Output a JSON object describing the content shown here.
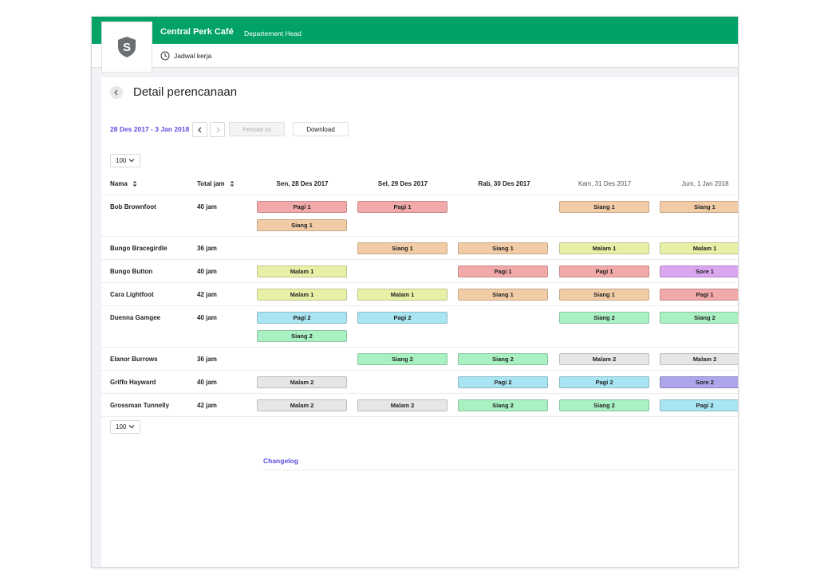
{
  "app": {
    "title": "Central Perk Café",
    "role": "Departement Head",
    "subnav_label": "Jadwal kerja",
    "logo_letter": "S",
    "brand_color": "#00a265"
  },
  "page": {
    "title": "Detail perencanaan",
    "date_range": "28 Des 2017 - 3 Jan 2018",
    "period_button": "Periode ini",
    "download_button": "Download",
    "page_size": "100",
    "changelog_label": "Changelog"
  },
  "icons": {
    "logo": "shield-logo-icon",
    "clock": "clock-icon",
    "back": "chevron-left-icon",
    "prev": "chevron-left-icon",
    "next": "chevron-right-icon",
    "select": "chevron-down-icon",
    "sort": "sort-icon"
  },
  "table": {
    "headers": {
      "name": "Nama",
      "hours": "Total jam",
      "days": [
        "Sen, 28 Des 2017",
        "Sel, 29 Des 2017",
        "Rab, 30 Des 2017",
        "Kam, 31 Des 2017",
        "Jum, 1 Jan 2018"
      ]
    },
    "shift_colors": {
      "Pagi 1": "#f2a9a9",
      "Siang 1": "#f2cca6",
      "Malam 1": "#e8f0a8",
      "Sore 1": "#dba6f0",
      "Pagi 2": "#a9e4f2",
      "Siang 2": "#a9f0c2",
      "Malam 2": "#e6e6e6",
      "Sore 2": "#ada6ea"
    },
    "rows": [
      {
        "name": "Bob Brownfoot",
        "hours": "40 jam",
        "days": [
          [
            "Pagi 1",
            "Siang 1"
          ],
          [
            "Pagi 1"
          ],
          [],
          [
            "Siang 1"
          ],
          [
            "Siang 1"
          ]
        ]
      },
      {
        "name": "Bungo Bracegirdle",
        "hours": "36 jam",
        "days": [
          [],
          [
            "Siang 1"
          ],
          [
            "Siang 1"
          ],
          [
            "Malam 1"
          ],
          [
            "Malam 1"
          ]
        ]
      },
      {
        "name": "Bungo Button",
        "hours": "40 jam",
        "days": [
          [
            "Malam 1"
          ],
          [],
          [
            "Pagi 1"
          ],
          [
            "Pagi 1"
          ],
          [
            "Sore 1"
          ]
        ]
      },
      {
        "name": "Cara Lightfoot",
        "hours": "42 jam",
        "days": [
          [
            "Malam 1"
          ],
          [
            "Malam 1"
          ],
          [
            "Siang 1"
          ],
          [
            "Siang 1"
          ],
          [
            "Pagi 1"
          ]
        ]
      },
      {
        "name": "Duenna Gamgee",
        "hours": "40 jam",
        "days": [
          [
            "Pagi 2",
            "Siang 2"
          ],
          [
            "Pagi 2"
          ],
          [],
          [
            "Siang 2"
          ],
          [
            "Siang 2"
          ]
        ]
      },
      {
        "name": "Elanor Burrows",
        "hours": "36 jam",
        "days": [
          [],
          [
            "Siang 2"
          ],
          [
            "Siang 2"
          ],
          [
            "Malam 2"
          ],
          [
            "Malam 2"
          ]
        ]
      },
      {
        "name": "Griffo Hayward",
        "hours": "40 jam",
        "days": [
          [
            "Malam 2"
          ],
          [],
          [
            "Pagi 2"
          ],
          [
            "Pagi 2"
          ],
          [
            "Sore 2"
          ]
        ]
      },
      {
        "name": "Grossman Tunnelly",
        "hours": "42 jam",
        "days": [
          [
            "Malam 2"
          ],
          [
            "Malam 2"
          ],
          [
            "Siang 2"
          ],
          [
            "Siang 2"
          ],
          [
            "Pagi 2"
          ]
        ]
      }
    ]
  }
}
